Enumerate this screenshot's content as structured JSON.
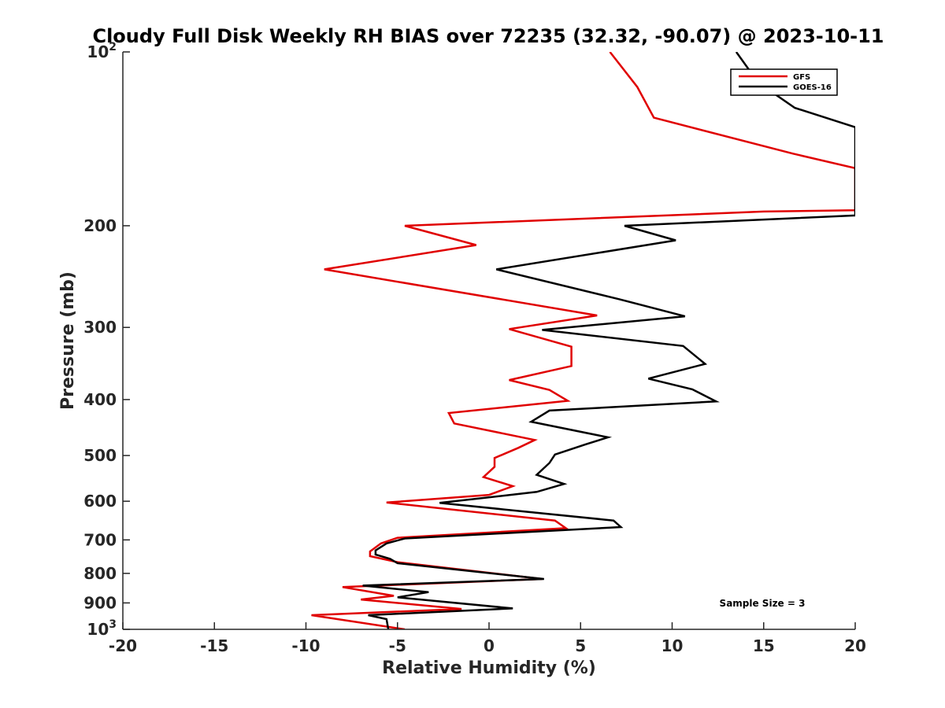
{
  "chart_data": {
    "type": "line",
    "title": "Cloudy Full Disk Weekly RH BIAS over 72235 (32.32, -90.07) @ 2023-10-11",
    "xlabel": "Relative Humidity (%)",
    "ylabel": "Pressure (mb)",
    "xlim": [
      -20,
      20
    ],
    "ylim": [
      1000,
      100
    ],
    "y_scale": "log",
    "grid": false,
    "legend_position": "top-right",
    "x_ticks": [
      -20,
      -15,
      -10,
      -5,
      0,
      5,
      10,
      15,
      20
    ],
    "x_tick_labels": [
      "-20",
      "-15",
      "-10",
      "-5",
      "0",
      "5",
      "10",
      "15",
      "20"
    ],
    "y_ticks": [
      100,
      200,
      300,
      400,
      500,
      600,
      700,
      800,
      900,
      1000
    ],
    "y_tick_labels": [
      {
        "base": "10",
        "sup": "2"
      },
      {
        "base": "200",
        "sup": ""
      },
      {
        "base": "300",
        "sup": ""
      },
      {
        "base": "400",
        "sup": ""
      },
      {
        "base": "500",
        "sup": ""
      },
      {
        "base": "600",
        "sup": ""
      },
      {
        "base": "700",
        "sup": ""
      },
      {
        "base": "800",
        "sup": ""
      },
      {
        "base": "900",
        "sup": ""
      },
      {
        "base": "10",
        "sup": "3"
      }
    ],
    "annotation": "Sample Size = 3",
    "series": [
      {
        "name": "GFS",
        "color": "#e00000",
        "points": [
          {
            "x": 6.6,
            "y": 100
          },
          {
            "x": 8.1,
            "y": 115
          },
          {
            "x": 9.0,
            "y": 130
          },
          {
            "x": 16.6,
            "y": 150
          },
          {
            "x": 20,
            "y": 159
          },
          {
            "x": 20,
            "y": 188
          },
          {
            "x": 15,
            "y": 189
          },
          {
            "x": -4.6,
            "y": 200
          },
          {
            "x": -0.7,
            "y": 216
          },
          {
            "x": -9.0,
            "y": 238
          },
          {
            "x": 5.9,
            "y": 286
          },
          {
            "x": 1.1,
            "y": 302
          },
          {
            "x": 4.5,
            "y": 324
          },
          {
            "x": 4.5,
            "y": 350
          },
          {
            "x": 1.1,
            "y": 370
          },
          {
            "x": 3.3,
            "y": 385
          },
          {
            "x": 4.3,
            "y": 402
          },
          {
            "x": -2.2,
            "y": 422
          },
          {
            "x": -1.9,
            "y": 440
          },
          {
            "x": 2.5,
            "y": 470
          },
          {
            "x": 1.6,
            "y": 485
          },
          {
            "x": 0.3,
            "y": 505
          },
          {
            "x": 0.3,
            "y": 523
          },
          {
            "x": -0.3,
            "y": 545
          },
          {
            "x": 1.3,
            "y": 565
          },
          {
            "x": 0.0,
            "y": 585
          },
          {
            "x": -5.6,
            "y": 603
          },
          {
            "x": 3.6,
            "y": 648
          },
          {
            "x": 4.2,
            "y": 668
          },
          {
            "x": -5.0,
            "y": 694
          },
          {
            "x": -5.9,
            "y": 710
          },
          {
            "x": -6.5,
            "y": 733
          },
          {
            "x": -6.5,
            "y": 747
          },
          {
            "x": -5.0,
            "y": 765
          },
          {
            "x": 2.9,
            "y": 818
          },
          {
            "x": -8.0,
            "y": 845
          },
          {
            "x": -5.2,
            "y": 875
          },
          {
            "x": -7.0,
            "y": 888
          },
          {
            "x": -1.5,
            "y": 922
          },
          {
            "x": -9.7,
            "y": 945
          },
          {
            "x": -4.6,
            "y": 1000
          }
        ]
      },
      {
        "name": "GOES-16",
        "color": "#000000",
        "points": [
          {
            "x": 13.5,
            "y": 100
          },
          {
            "x": 14.7,
            "y": 113
          },
          {
            "x": 16.7,
            "y": 125
          },
          {
            "x": 20,
            "y": 135
          },
          {
            "x": 20,
            "y": 192
          },
          {
            "x": 7.4,
            "y": 200
          },
          {
            "x": 10.2,
            "y": 212
          },
          {
            "x": 0.4,
            "y": 238
          },
          {
            "x": 7.1,
            "y": 268
          },
          {
            "x": 10.7,
            "y": 287
          },
          {
            "x": 2.9,
            "y": 303
          },
          {
            "x": 10.6,
            "y": 323
          },
          {
            "x": 11.8,
            "y": 347
          },
          {
            "x": 8.7,
            "y": 368
          },
          {
            "x": 11.1,
            "y": 384
          },
          {
            "x": 12.4,
            "y": 403
          },
          {
            "x": 3.3,
            "y": 418
          },
          {
            "x": 2.3,
            "y": 437
          },
          {
            "x": 6.5,
            "y": 465
          },
          {
            "x": 5.3,
            "y": 478
          },
          {
            "x": 3.6,
            "y": 498
          },
          {
            "x": 3.3,
            "y": 515
          },
          {
            "x": 2.6,
            "y": 540
          },
          {
            "x": 4.1,
            "y": 560
          },
          {
            "x": 2.6,
            "y": 578
          },
          {
            "x": -2.7,
            "y": 604
          },
          {
            "x": 6.8,
            "y": 648
          },
          {
            "x": 7.2,
            "y": 665
          },
          {
            "x": -4.6,
            "y": 696
          },
          {
            "x": -5.6,
            "y": 710
          },
          {
            "x": -6.2,
            "y": 730
          },
          {
            "x": -6.2,
            "y": 742
          },
          {
            "x": -5.4,
            "y": 755
          },
          {
            "x": -5.0,
            "y": 768
          },
          {
            "x": 3.0,
            "y": 818
          },
          {
            "x": -6.9,
            "y": 840
          },
          {
            "x": -3.3,
            "y": 862
          },
          {
            "x": -5.0,
            "y": 880
          },
          {
            "x": 1.3,
            "y": 920
          },
          {
            "x": -6.6,
            "y": 945
          },
          {
            "x": -5.6,
            "y": 960
          },
          {
            "x": -5.5,
            "y": 1000
          }
        ]
      }
    ]
  }
}
